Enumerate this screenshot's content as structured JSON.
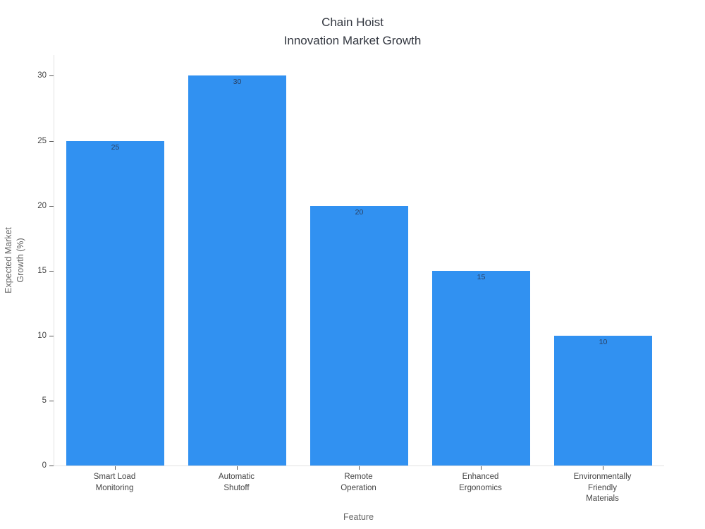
{
  "chart_data": {
    "type": "bar",
    "title": "Chain Hoist\nInnovation Market Growth",
    "xlabel": "Feature",
    "ylabel": "Expected Market\nGrowth (%)",
    "categories": [
      "Smart Load\nMonitoring",
      "Automatic\nShutoff",
      "Remote\nOperation",
      "Enhanced\nErgonomics",
      "Environmentally\nFriendly\nMaterials"
    ],
    "values": [
      25,
      30,
      20,
      15,
      10
    ],
    "value_labels": [
      "25",
      "30",
      "20",
      "15",
      "10"
    ],
    "yticks": [
      0,
      5,
      10,
      15,
      20,
      25,
      30
    ],
    "ylim": [
      0,
      31.6
    ],
    "grid": false,
    "legend": "none",
    "bar_gap_fraction": 0.2,
    "colors": {
      "bar": "#3191F1",
      "value_label": "#2a3f5f",
      "tick_label": "#444444",
      "axis_title": "#666666",
      "title": "#333740",
      "axis_line": "#e2e2e2",
      "tick_mark": "#555555",
      "background": "#ffffff"
    }
  }
}
